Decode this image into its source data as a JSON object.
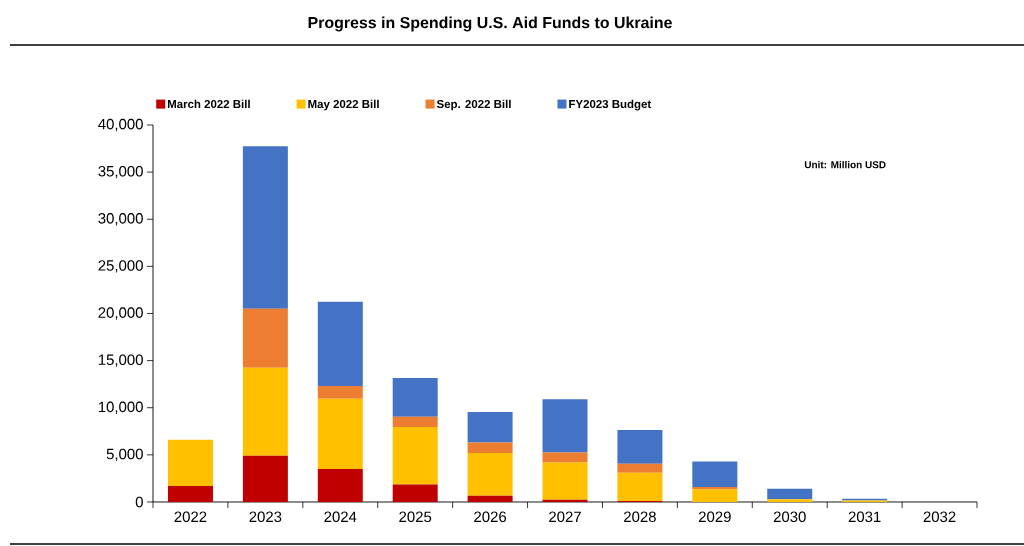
{
  "chart_data": {
    "type": "bar",
    "title": "Progress in Spending U.S. Aid Funds to Ukraine",
    "stacked": true,
    "legend": "top",
    "annotations": [
      "Unit: Million USD"
    ],
    "categories": [
      "2022",
      "2023",
      "2024",
      "2025",
      "2026",
      "2027",
      "2028",
      "2029",
      "2030",
      "2031",
      "2032"
    ],
    "ylim": [
      0,
      40000
    ],
    "yticks": [
      0,
      {
        "value": 5000,
        "label": "5,000"
      },
      {
        "value": 10000,
        "label": "10,000"
      },
      {
        "value": 15000,
        "label": "15,000"
      },
      {
        "value": 20000,
        "label": "20,000"
      },
      {
        "value": 25000,
        "label": "25,000"
      },
      {
        "value": 30000,
        "label": "30,000"
      },
      {
        "value": 35000,
        "label": "35,000"
      },
      {
        "value": 40000,
        "label": "40,000"
      }
    ],
    "series": [
      {
        "name": "March 2022 Bill",
        "color": "#c00000",
        "values": [
          1700,
          4900,
          3500,
          1850,
          650,
          250,
          100,
          0,
          0,
          0,
          0
        ]
      },
      {
        "name": "May 2022 Bill",
        "color": "#ffc000",
        "values": [
          4900,
          9350,
          7450,
          6100,
          4550,
          3950,
          3000,
          1350,
          300,
          150,
          0
        ]
      },
      {
        "name": "Sep. 2022 Bill",
        "color": "#ed7d31",
        "values": [
          0,
          6250,
          1350,
          1100,
          1100,
          1050,
          950,
          250,
          0,
          0,
          0
        ]
      },
      {
        "name": "FY2023 Budget",
        "color": "#4472c4",
        "values": [
          0,
          17250,
          8950,
          4100,
          3250,
          5650,
          3600,
          2700,
          1100,
          200,
          0
        ]
      }
    ]
  }
}
